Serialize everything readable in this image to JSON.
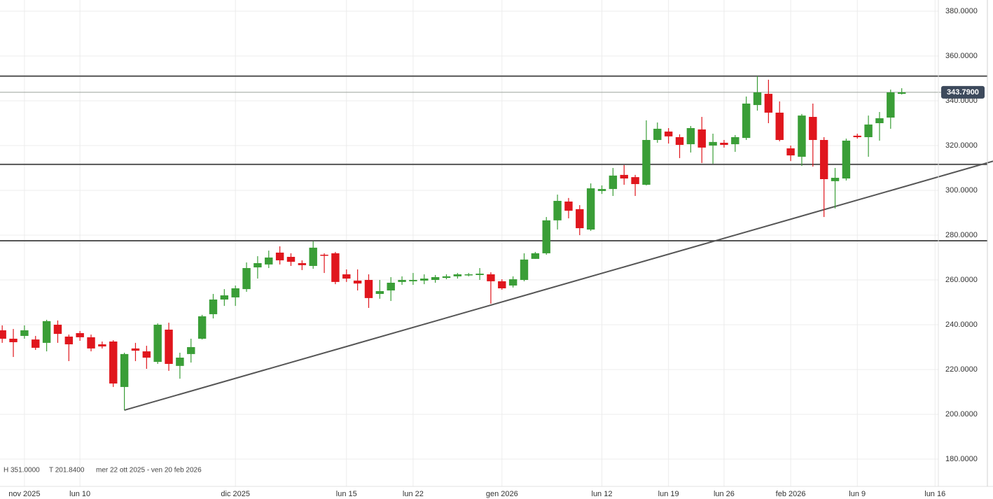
{
  "chart_data": {
    "type": "candlestick",
    "categories": [
      null,
      null,
      "nov 2025",
      null,
      null,
      null,
      null,
      "lun 10",
      null,
      null,
      null,
      null,
      null,
      null,
      null,
      null,
      null,
      null,
      null,
      null,
      null,
      "dic 2025",
      null,
      null,
      null,
      null,
      null,
      null,
      null,
      null,
      null,
      "lun 15",
      null,
      null,
      null,
      null,
      null,
      "lun 22",
      null,
      null,
      null,
      null,
      null,
      null,
      null,
      "gen 2026",
      null,
      null,
      null,
      null,
      null,
      null,
      null,
      null,
      "lun 12",
      null,
      null,
      null,
      null,
      null,
      "lun 19",
      null,
      null,
      null,
      null,
      "lun 26",
      null,
      null,
      null,
      null,
      null,
      "feb 2026",
      null,
      null,
      null,
      null,
      null,
      "lun 9",
      null,
      null,
      null,
      null,
      null,
      null,
      "lun 16"
    ],
    "open": [
      237.5,
      233.75,
      235,
      233.4,
      231.9,
      240,
      234.7,
      236.25,
      234.4,
      231.25,
      232.5,
      212.2,
      229.4,
      228.1,
      223.4,
      237.8,
      221.6,
      226.9,
      233.75,
      244.7,
      251.25,
      252.2,
      255.9,
      265.6,
      266.9,
      272.2,
      270.3,
      267.5,
      266.25,
      271.25,
      271.9,
      262.5,
      259.7,
      260,
      253.75,
      255.3,
      259.1,
      259.4,
      259.7,
      260,
      260.9,
      261.6,
      262.2,
      262.2,
      262.5,
      259.4,
      257.5,
      260,
      269.4,
      271.9,
      286.6,
      295,
      291.6,
      282.5,
      299.7,
      300.6,
      306.9,
      305.9,
      302.5,
      322.5,
      326.25,
      323.75,
      320.6,
      327.2,
      320,
      321.25,
      320.6,
      323.4,
      338.1,
      343.1,
      334.7,
      318.75,
      315,
      332.8,
      322.5,
      304.1,
      305.3,
      324.4,
      323.75,
      330,
      332.5,
      343.1,
      null,
      null,
      null
    ],
    "high": [
      239.7,
      238.1,
      239.7,
      235,
      242.2,
      241.9,
      235.6,
      237.2,
      235.6,
      232.5,
      233.1,
      227.5,
      231.9,
      230.6,
      240.6,
      240.9,
      227.5,
      233.75,
      244.4,
      253.75,
      255.9,
      257.5,
      267.8,
      270.6,
      273.1,
      275,
      271.9,
      268.75,
      277.2,
      271.9,
      272.5,
      264.7,
      264.7,
      262.5,
      260,
      261.25,
      261.6,
      263.1,
      262.5,
      262.2,
      262.5,
      263.1,
      263.1,
      265.3,
      263.4,
      260.3,
      261.6,
      271.9,
      272.5,
      288.1,
      298.1,
      296.6,
      293.4,
      303.1,
      302.2,
      310,
      311.25,
      306.9,
      331.25,
      330.3,
      327.8,
      325,
      328.75,
      332.8,
      325.3,
      322.5,
      324.7,
      341.9,
      351,
      349.4,
      339.7,
      320,
      334.1,
      338.75,
      323.75,
      310,
      323.1,
      325.3,
      333.4,
      335,
      345,
      345.6,
      null,
      null,
      null
    ],
    "low": [
      231.9,
      225.6,
      233.75,
      228.75,
      228.1,
      231.9,
      223.75,
      232.8,
      228.1,
      229.4,
      212.2,
      201.84,
      223.75,
      220.3,
      222.5,
      219.4,
      215.9,
      223.1,
      233.4,
      242.8,
      248.4,
      248.4,
      254.7,
      260.6,
      265.3,
      266.9,
      266.25,
      264.4,
      265,
      263.1,
      258.1,
      259.1,
      255.3,
      247.5,
      251.6,
      250.6,
      257.8,
      257.8,
      258.1,
      258.75,
      260.3,
      260.6,
      261.6,
      260,
      249.4,
      255.6,
      256.6,
      259.4,
      269.4,
      271.25,
      282.5,
      287.5,
      280,
      281.9,
      298.4,
      297.5,
      302.5,
      297.5,
      302.2,
      321.25,
      320.9,
      314.4,
      316.9,
      312.2,
      311.9,
      319.1,
      317.2,
      322.5,
      335.6,
      330,
      321.9,
      313.1,
      310.9,
      310.6,
      288.1,
      291.9,
      304.4,
      323.1,
      315,
      322.2,
      327.5,
      342.8,
      null,
      null,
      null
    ],
    "close": [
      233.75,
      232.2,
      237.5,
      229.7,
      241.6,
      235.9,
      231.25,
      234.4,
      229.4,
      230.3,
      213.75,
      226.9,
      228.4,
      225.3,
      240,
      222.5,
      225.3,
      230,
      243.75,
      251.25,
      253.1,
      256.25,
      265.3,
      267.5,
      270,
      268.75,
      268.1,
      266.6,
      274.4,
      270.9,
      259.1,
      260.6,
      258.4,
      251.9,
      255,
      258.75,
      260,
      260,
      260.6,
      261.25,
      261.6,
      262.5,
      262.5,
      262.8,
      259.4,
      256.25,
      260.3,
      269.1,
      271.9,
      286.6,
      295.3,
      290.9,
      283.1,
      300.9,
      300.6,
      306.6,
      305.3,
      302.8,
      322.5,
      327.5,
      324.1,
      320.3,
      327.8,
      319.1,
      321.6,
      320.3,
      323.75,
      338.75,
      343.75,
      334.7,
      322.5,
      315.6,
      333.4,
      322.5,
      305,
      305.6,
      322.2,
      323.75,
      329.4,
      332.2,
      343.75,
      343.79,
      null,
      null,
      null
    ],
    "up_color": "#3a9e37",
    "down_color": "#e0161d",
    "xlim": [
      -0.2,
      84.3
    ],
    "ylim": [
      167.8,
      385
    ],
    "yticks": [
      {
        "value": 180,
        "label": "180.0000"
      },
      {
        "value": 200,
        "label": "200.0000"
      },
      {
        "value": 220,
        "label": "220.0000"
      },
      {
        "value": 240,
        "label": "240.0000"
      },
      {
        "value": 260,
        "label": "260.0000"
      },
      {
        "value": 280,
        "label": "280.0000"
      },
      {
        "value": 300,
        "label": "300.0000"
      },
      {
        "value": 320,
        "label": "320.0000"
      },
      {
        "value": 340,
        "label": "340.0000"
      },
      {
        "value": 360,
        "label": "360.0000"
      },
      {
        "value": 380,
        "label": "380.0000"
      }
    ],
    "grid": true,
    "levels": [
      351,
      311.6,
      277.5
    ],
    "trendline": {
      "x": [
        11,
        84
      ],
      "values": [
        201.84,
        305.6
      ]
    },
    "last_price": {
      "value": 343.79,
      "label": "343.7900"
    },
    "summary": [
      "H 351.0000",
      "T 201.8400",
      "mer 22 ott 2025 - ven 20 feb 2026"
    ]
  }
}
